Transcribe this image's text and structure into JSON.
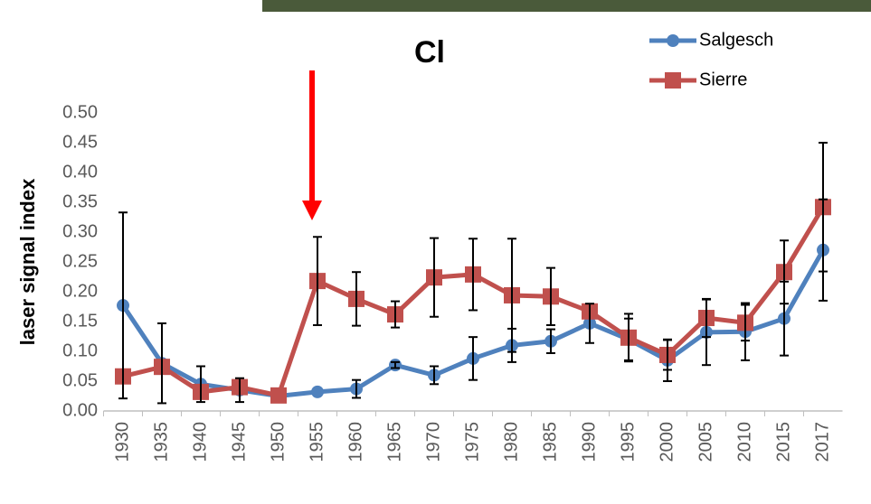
{
  "chart_data": {
    "type": "line",
    "title": "Cl",
    "y_label": "laser signal index",
    "categories": [
      "1930",
      "1935",
      "1940",
      "1945",
      "1950",
      "1955",
      "1960",
      "1965",
      "1970",
      "1975",
      "1980",
      "1985",
      "1990",
      "1995",
      "2000",
      "2005",
      "2010",
      "2015",
      "2017"
    ],
    "ylim": [
      0,
      0.5
    ],
    "yticks": [
      {
        "value": 0,
        "label": "0.00"
      },
      {
        "value": 0.05,
        "label": "0.05"
      },
      {
        "value": 0.1,
        "label": "0.10"
      },
      {
        "value": 0.15,
        "label": "0.15"
      },
      {
        "value": 0.2,
        "label": "0.20"
      },
      {
        "value": 0.25,
        "label": "0.25"
      },
      {
        "value": 0.3,
        "label": "0.30"
      },
      {
        "value": 0.35,
        "label": "0.35"
      },
      {
        "value": 0.4,
        "label": "0.40"
      },
      {
        "value": 0.45,
        "label": "0.45"
      },
      {
        "value": 0.5,
        "label": "0.50"
      }
    ],
    "grid": false,
    "legend": "top-right",
    "series": [
      {
        "name": "Salgesch",
        "color": "#4f81bd",
        "marker": "circle",
        "values": [
          0.177,
          0.08,
          0.045,
          0.035,
          0.025,
          0.032,
          0.037,
          0.077,
          0.06,
          0.088,
          0.11,
          0.117,
          0.147,
          0.12,
          0.085,
          0.132,
          0.133,
          0.155,
          0.27
        ],
        "errors": [
          0.156,
          0.067,
          0.03,
          0.02,
          null,
          null,
          0.015,
          0.005,
          0.015,
          0.036,
          0.028,
          0.02,
          0.033,
          0.035,
          0.035,
          0.055,
          0.048,
          0.062,
          0.085
        ]
      },
      {
        "name": "Sierre",
        "color": "#c0504d",
        "marker": "square",
        "values": [
          0.058,
          0.074,
          0.032,
          0.04,
          0.026,
          0.218,
          0.188,
          0.162,
          0.224,
          0.229,
          0.194,
          0.192,
          0.167,
          0.123,
          0.094,
          0.156,
          0.148,
          0.233,
          0.342
        ],
        "errors": [
          null,
          null,
          null,
          null,
          null,
          0.074,
          0.045,
          0.022,
          0.066,
          0.06,
          0.095,
          0.048,
          null,
          0.04,
          0.025,
          0.032,
          0.03,
          0.053,
          0.108
        ]
      }
    ]
  }
}
